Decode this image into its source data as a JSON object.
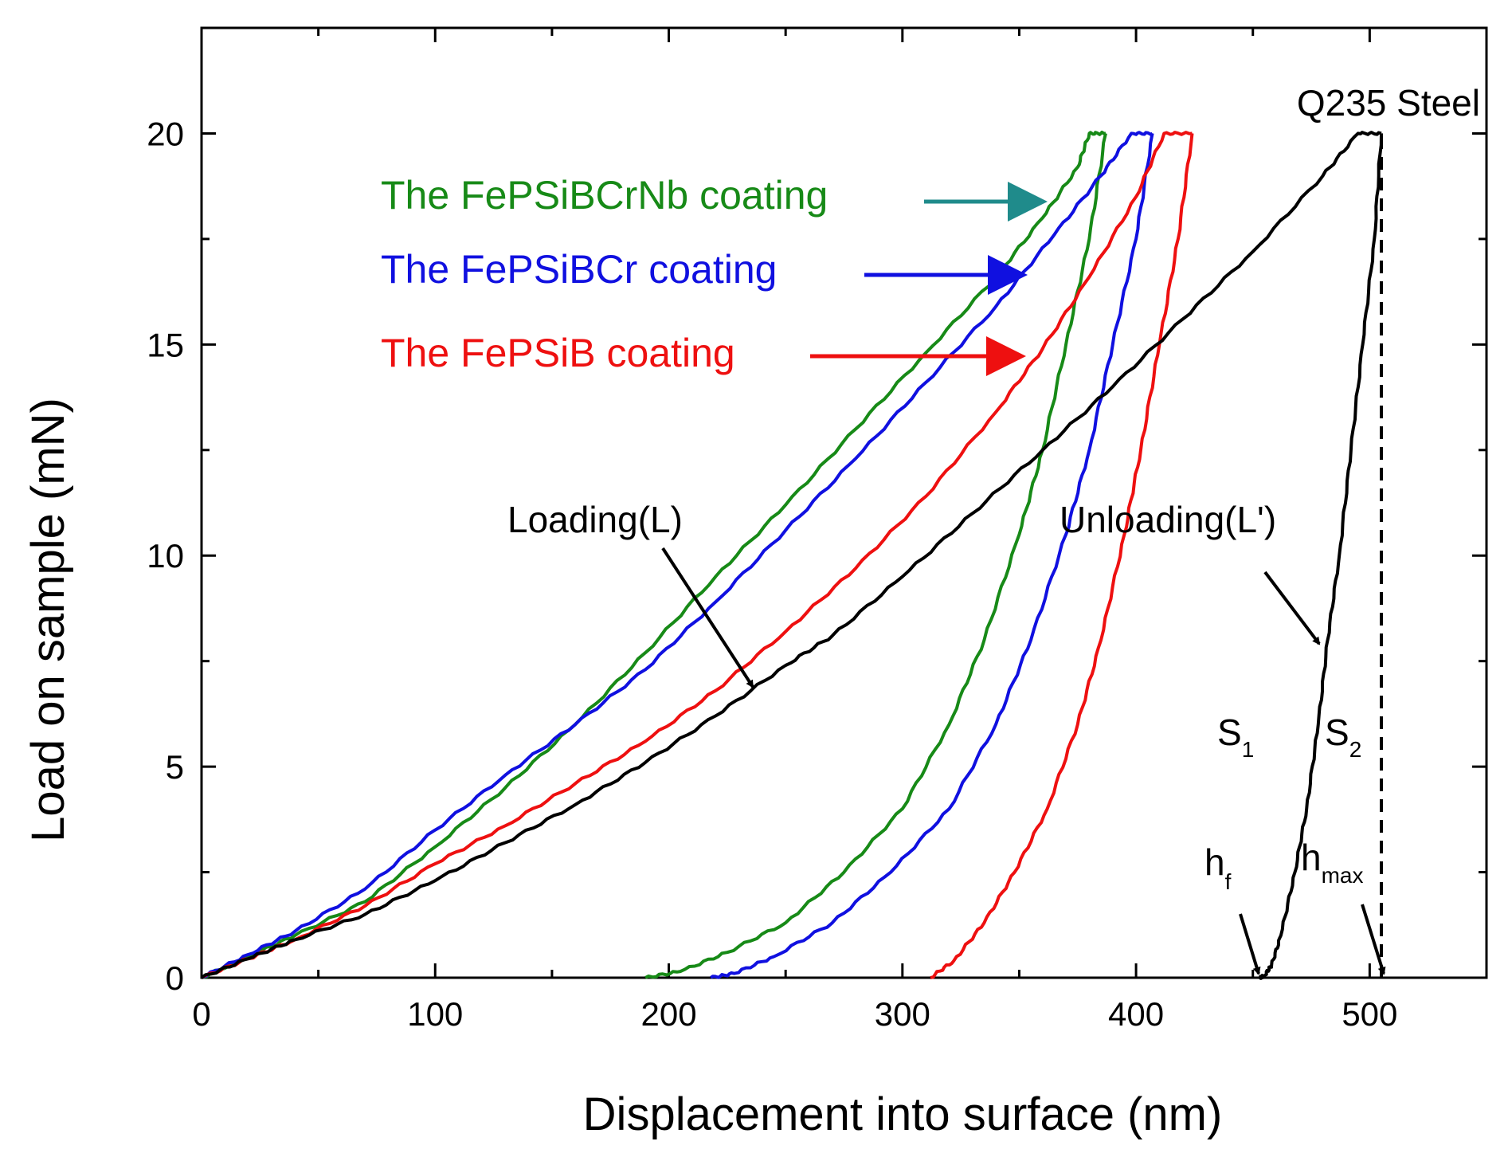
{
  "chart_data": {
    "type": "line",
    "title": "",
    "xlabel": "Displacement into surface (nm)",
    "ylabel": "Load on sample (mN)",
    "xlim": [
      0,
      550
    ],
    "ylim": [
      0,
      22.5
    ],
    "x_ticks": [
      0,
      100,
      200,
      300,
      400,
      500
    ],
    "y_ticks": [
      0,
      5,
      10,
      15,
      20
    ],
    "grid": false,
    "series": [
      {
        "name": "The FePSiBCrNb coating",
        "color": "#178a17",
        "loading": [
          [
            0,
            0
          ],
          [
            20,
            0.5
          ],
          [
            40,
            1.0
          ],
          [
            70,
            1.8
          ],
          [
            100,
            3.1
          ],
          [
            130,
            4.5
          ],
          [
            160,
            6.0
          ],
          [
            190,
            7.7
          ],
          [
            220,
            9.5
          ],
          [
            250,
            11.2
          ],
          [
            280,
            13.0
          ],
          [
            310,
            14.8
          ],
          [
            340,
            16.6
          ],
          [
            360,
            18.0
          ],
          [
            375,
            19.2
          ],
          [
            380,
            20.0
          ],
          [
            387,
            20.0
          ]
        ],
        "unloading": [
          [
            387,
            20.0
          ],
          [
            380,
            17.5
          ],
          [
            370,
            15.0
          ],
          [
            360,
            12.5
          ],
          [
            350,
            10.5
          ],
          [
            335,
            8.0
          ],
          [
            320,
            6.0
          ],
          [
            300,
            4.0
          ],
          [
            275,
            2.5
          ],
          [
            250,
            1.3
          ],
          [
            225,
            0.6
          ],
          [
            205,
            0.15
          ],
          [
            190,
            0.0
          ]
        ]
      },
      {
        "name": "The FePSiBCr coating",
        "color": "#1010e0",
        "loading": [
          [
            0,
            0
          ],
          [
            20,
            0.55
          ],
          [
            40,
            1.1
          ],
          [
            70,
            2.1
          ],
          [
            100,
            3.5
          ],
          [
            130,
            4.8
          ],
          [
            160,
            6.0
          ],
          [
            190,
            7.3
          ],
          [
            220,
            8.9
          ],
          [
            250,
            10.6
          ],
          [
            280,
            12.3
          ],
          [
            310,
            14.1
          ],
          [
            340,
            15.9
          ],
          [
            365,
            17.6
          ],
          [
            385,
            19.0
          ],
          [
            398,
            20.0
          ],
          [
            407,
            20.0
          ]
        ],
        "unloading": [
          [
            407,
            20.0
          ],
          [
            400,
            17.5
          ],
          [
            390,
            15.0
          ],
          [
            380,
            12.5
          ],
          [
            370,
            10.5
          ],
          [
            355,
            8.0
          ],
          [
            340,
            6.0
          ],
          [
            320,
            4.0
          ],
          [
            295,
            2.5
          ],
          [
            270,
            1.3
          ],
          [
            245,
            0.5
          ],
          [
            228,
            0.1
          ],
          [
            218,
            0.0
          ]
        ]
      },
      {
        "name": "The FePSiB coating",
        "color": "#ee1010",
        "loading": [
          [
            0,
            0
          ],
          [
            20,
            0.45
          ],
          [
            40,
            0.9
          ],
          [
            70,
            1.7
          ],
          [
            100,
            2.7
          ],
          [
            130,
            3.6
          ],
          [
            160,
            4.6
          ],
          [
            190,
            5.6
          ],
          [
            220,
            6.8
          ],
          [
            250,
            8.2
          ],
          [
            280,
            9.7
          ],
          [
            310,
            11.4
          ],
          [
            340,
            13.4
          ],
          [
            360,
            14.9
          ],
          [
            380,
            16.6
          ],
          [
            400,
            18.5
          ],
          [
            412,
            20.0
          ],
          [
            424,
            20.0
          ]
        ],
        "unloading": [
          [
            424,
            20.0
          ],
          [
            418,
            17.5
          ],
          [
            410,
            15.0
          ],
          [
            402,
            12.5
          ],
          [
            395,
            10.5
          ],
          [
            385,
            8.0
          ],
          [
            375,
            6.0
          ],
          [
            362,
            4.0
          ],
          [
            348,
            2.5
          ],
          [
            335,
            1.3
          ],
          [
            322,
            0.4
          ],
          [
            312,
            0.0
          ]
        ]
      },
      {
        "name": "Q235 Steel",
        "color": "#000000",
        "loading": [
          [
            0,
            0
          ],
          [
            20,
            0.45
          ],
          [
            40,
            0.9
          ],
          [
            70,
            1.5
          ],
          [
            100,
            2.3
          ],
          [
            130,
            3.2
          ],
          [
            160,
            4.1
          ],
          [
            190,
            5.1
          ],
          [
            220,
            6.2
          ],
          [
            250,
            7.4
          ],
          [
            270,
            8.1
          ],
          [
            300,
            9.5
          ],
          [
            330,
            11.0
          ],
          [
            360,
            12.5
          ],
          [
            390,
            14.0
          ],
          [
            420,
            15.6
          ],
          [
            450,
            17.2
          ],
          [
            480,
            19.0
          ],
          [
            495,
            20.0
          ],
          [
            505,
            20.0
          ]
        ],
        "unloading": [
          [
            505,
            20.0
          ],
          [
            502,
            17.5
          ],
          [
            497,
            15.0
          ],
          [
            492,
            12.5
          ],
          [
            487,
            10.0
          ],
          [
            482,
            8.0
          ],
          [
            478,
            6.0
          ],
          [
            473,
            4.0
          ],
          [
            468,
            2.5
          ],
          [
            462,
            1.0
          ],
          [
            458,
            0.3
          ],
          [
            455,
            0.05
          ],
          [
            453,
            0.0
          ]
        ]
      }
    ],
    "hmax_line": {
      "x": 505,
      "y0": 0,
      "y1": 20,
      "style": "dashed"
    },
    "annotations": {
      "fecrnb_label": "The FePSiBCrNb coating",
      "fecr_label": "The FePSiBCr coating",
      "fepsib_label": "The FePSiB coating",
      "q235_label": "Q235 Steel",
      "loading_label": "Loading(L)",
      "unloading_label": "Unloading(L')",
      "s1_main": "S",
      "s1_sub": "1",
      "s2_main": "S",
      "s2_sub": "2",
      "hf_main": "h",
      "hf_sub": "f",
      "hmax_main": "h",
      "hmax_sub": "max",
      "arrow_fecrnb_color": "#1f8b8b"
    }
  }
}
